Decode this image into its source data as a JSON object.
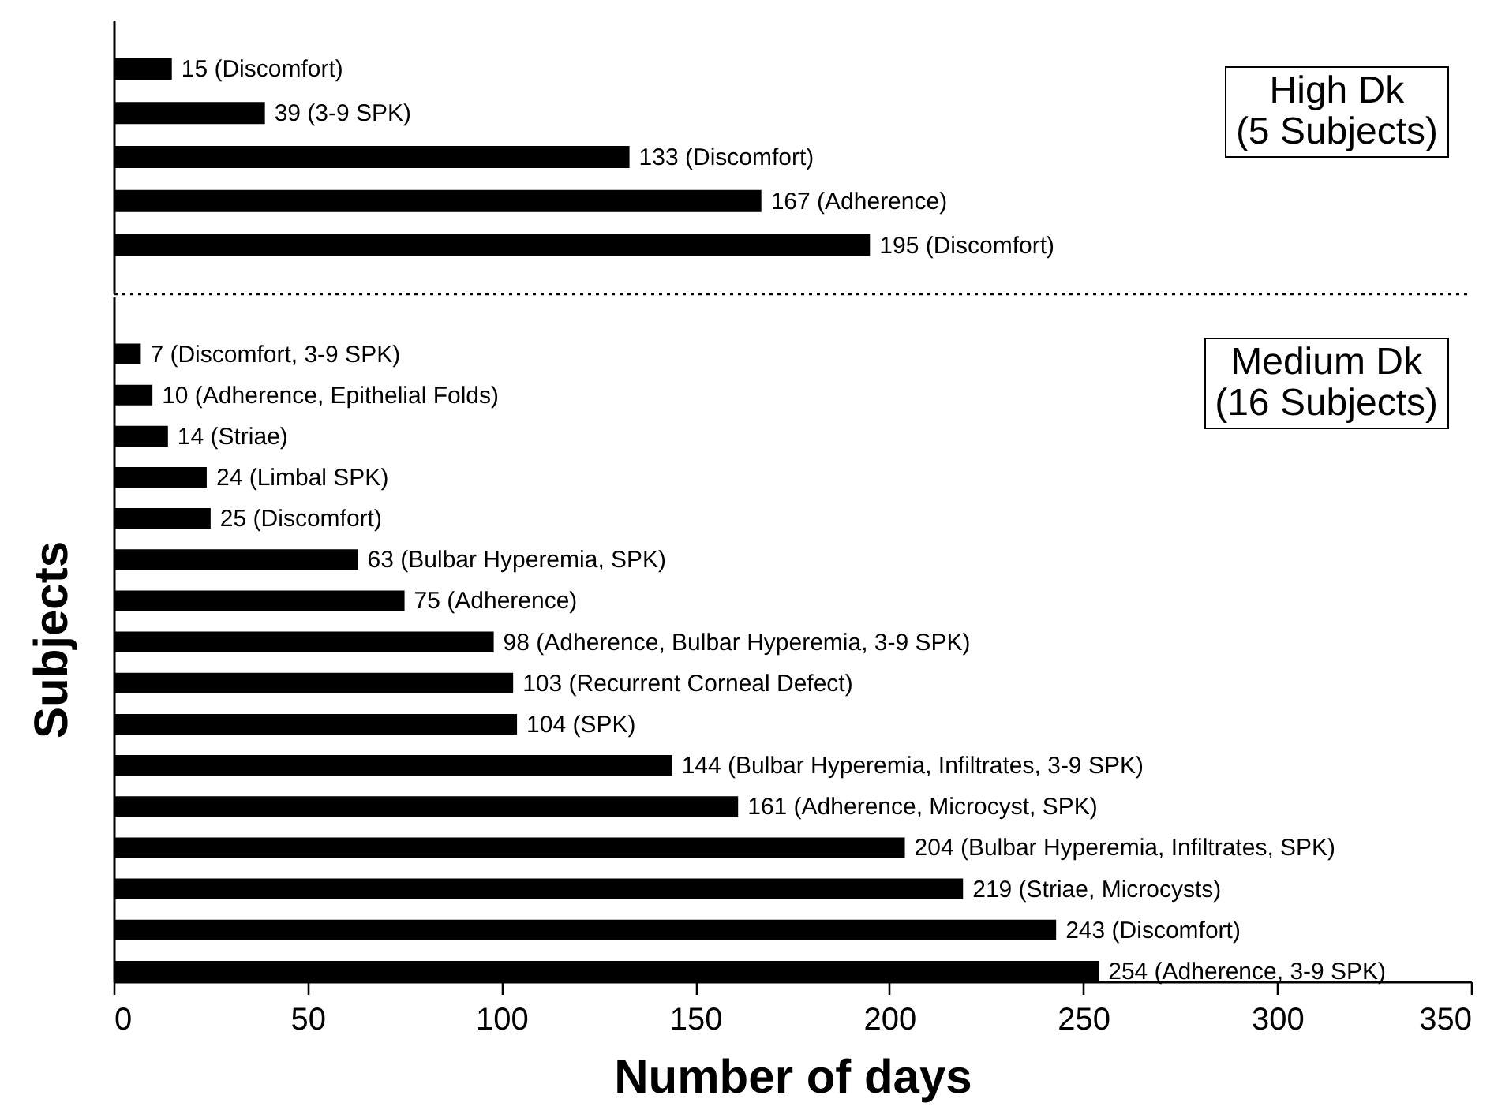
{
  "chart_data": [
    {
      "type": "bar",
      "orientation": "horizontal",
      "categories": [
        null,
        null,
        null,
        null,
        null
      ],
      "values": [
        15,
        39,
        133,
        167,
        195
      ],
      "color": "#000000",
      "value_labels": [
        "15 (Discomfort)",
        "39 (3-9 SPK)",
        "133 (Discomfort)",
        "167 (Adherence)",
        "195 (Discomfort)"
      ],
      "xlim": [
        0,
        350
      ],
      "tick_labels": false,
      "annotations": [
        "High Dk\n(5 Subjects)"
      ]
    },
    {
      "type": "bar",
      "orientation": "horizontal",
      "categories": [
        null,
        null,
        null,
        null,
        null,
        null,
        null,
        null,
        null,
        null,
        null,
        null,
        null,
        null,
        null,
        null
      ],
      "values": [
        7,
        10,
        14,
        24,
        25,
        63,
        75,
        98,
        103,
        104,
        144,
        161,
        204,
        219,
        243,
        254
      ],
      "color": "#000000",
      "value_labels": [
        "7 (Discomfort, 3-9 SPK)",
        "10 (Adherence, Epithelial Folds)",
        "14 (Striae)",
        "24 (Limbal SPK)",
        "25 (Discomfort)",
        "63 (Bulbar Hyperemia, SPK)",
        "75 (Adherence)",
        "98 (Adherence, Bulbar Hyperemia, 3-9 SPK)",
        "103 (Recurrent Corneal Defect)",
        "104 (SPK)",
        "144 (Bulbar Hyperemia, Infiltrates, 3-9 SPK)",
        "161 (Adherence, Microcyst, SPK)",
        "204 (Bulbar Hyperemia, Infiltrates, SPK)",
        "219 (Striae, Microcysts)",
        "243 (Discomfort)",
        "254 (Adherence, 3-9 SPK)"
      ],
      "xlim": [
        0,
        350
      ],
      "xticks": [
        0,
        50,
        100,
        150,
        200,
        250,
        300,
        350
      ],
      "xlabel": "Number of days",
      "ylabel": "Subjects",
      "annotations": [
        "Medium Dk\n(16 Subjects)"
      ]
    }
  ]
}
